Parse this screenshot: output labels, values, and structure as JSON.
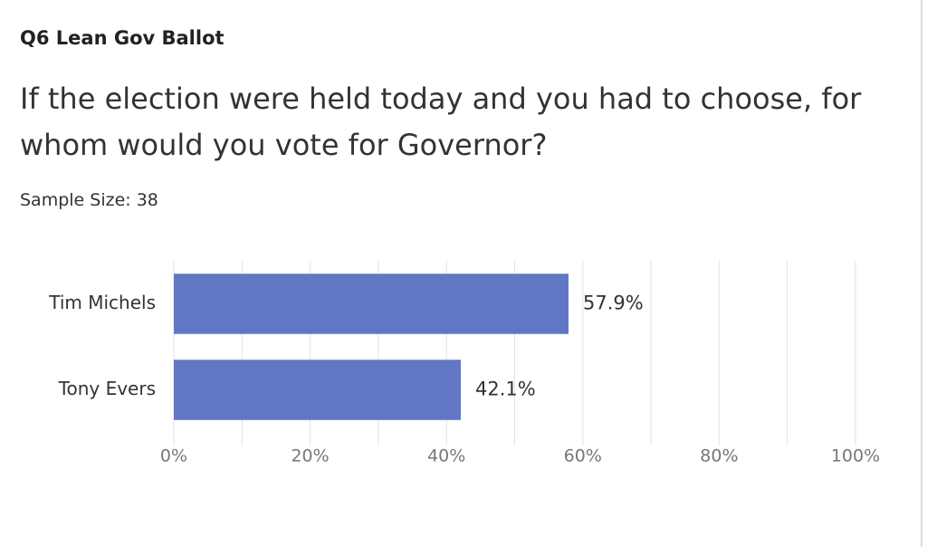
{
  "chart_data": {
    "type": "bar",
    "orientation": "horizontal",
    "header": "Q6 Lean Gov Ballot",
    "title": "If the election were held today and you had to choose, for whom would you vote for Governor?",
    "subtitle": "Sample Size: 38",
    "categories": [
      "Tim Michels",
      "Tony Evers"
    ],
    "values": [
      57.9,
      42.1
    ],
    "value_labels": [
      "57.9%",
      "42.1%"
    ],
    "color": "#6277c3",
    "xlim": [
      0,
      100
    ],
    "xticks": [
      {
        "value": 0,
        "label": "0%"
      },
      {
        "value": 20,
        "label": "20%"
      },
      {
        "value": 40,
        "label": "40%"
      },
      {
        "value": 60,
        "label": "60%"
      },
      {
        "value": 80,
        "label": "80%"
      },
      {
        "value": 100,
        "label": "100%"
      }
    ],
    "minor_xticks": [
      10,
      30,
      50,
      70,
      90
    ],
    "grid": true
  }
}
